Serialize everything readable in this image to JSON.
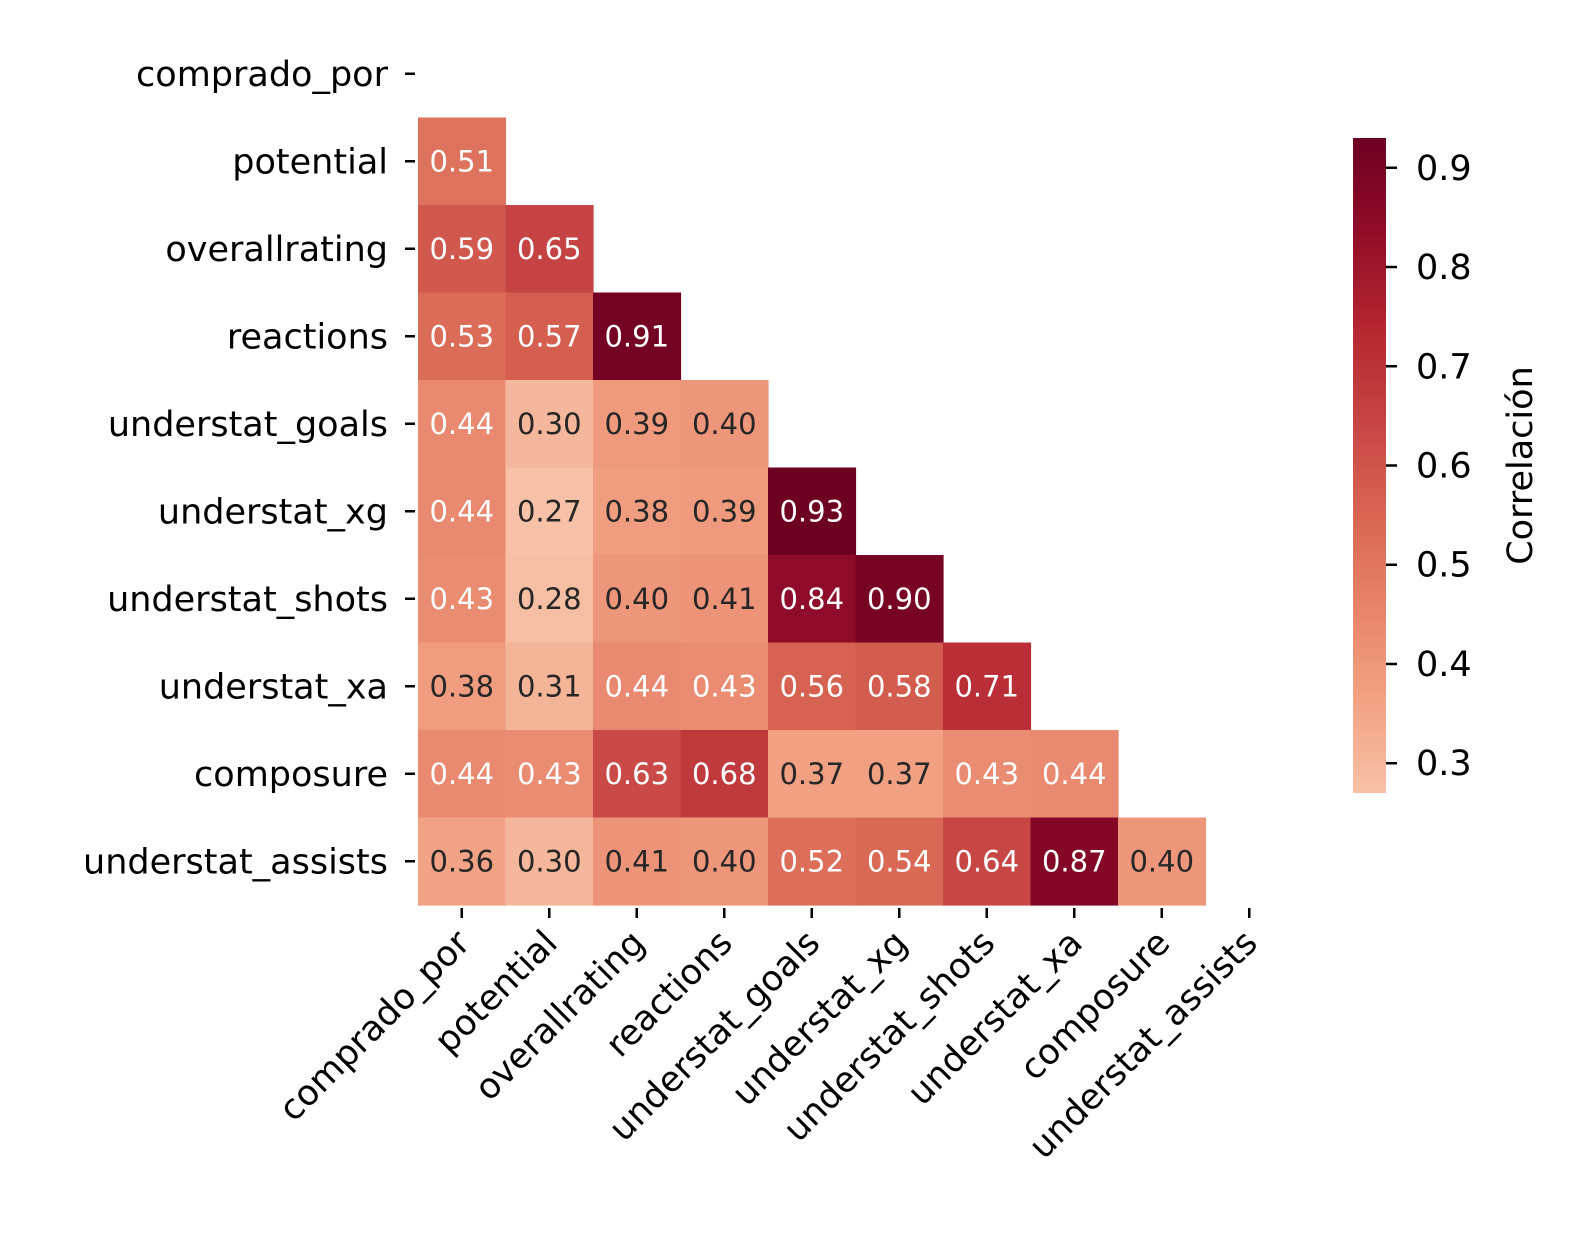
{
  "chart_data": {
    "type": "heatmap",
    "variables": [
      "comprado_por",
      "potential",
      "overallrating",
      "reactions",
      "understat_goals",
      "understat_xg",
      "understat_shots",
      "understat_xa",
      "composure",
      "understat_assists"
    ],
    "mask": "upper-triangle-including-diagonal",
    "values": [
      [
        null,
        null,
        null,
        null,
        null,
        null,
        null,
        null,
        null,
        null
      ],
      [
        0.51,
        null,
        null,
        null,
        null,
        null,
        null,
        null,
        null,
        null
      ],
      [
        0.59,
        0.65,
        null,
        null,
        null,
        null,
        null,
        null,
        null,
        null
      ],
      [
        0.53,
        0.57,
        0.91,
        null,
        null,
        null,
        null,
        null,
        null,
        null
      ],
      [
        0.44,
        0.3,
        0.39,
        0.4,
        null,
        null,
        null,
        null,
        null,
        null
      ],
      [
        0.44,
        0.27,
        0.38,
        0.39,
        0.93,
        null,
        null,
        null,
        null,
        null
      ],
      [
        0.43,
        0.28,
        0.4,
        0.41,
        0.84,
        0.9,
        null,
        null,
        null,
        null
      ],
      [
        0.38,
        0.31,
        0.44,
        0.43,
        0.56,
        0.58,
        0.71,
        null,
        null,
        null
      ],
      [
        0.44,
        0.43,
        0.63,
        0.68,
        0.37,
        0.37,
        0.43,
        0.44,
        null,
        null
      ],
      [
        0.36,
        0.3,
        0.41,
        0.4,
        0.52,
        0.54,
        0.64,
        0.87,
        0.4,
        null
      ]
    ],
    "value_format": "0.00",
    "colorbar": {
      "label": "Correlación",
      "range": [
        0.27,
        0.93
      ],
      "ticks": [
        "0.3",
        "0.4",
        "0.5",
        "0.6",
        "0.7",
        "0.8",
        "0.9"
      ],
      "colormap": "RdBu_r (upper half)",
      "colors": [
        "#f6c1a6",
        "#f2a283",
        "#e7836a",
        "#d76552",
        "#c64444",
        "#b42530",
        "#900d29",
        "#6d0021"
      ]
    },
    "text_colors": {
      "light_cells": "#262626",
      "dark_cells": "#ffffff"
    }
  }
}
